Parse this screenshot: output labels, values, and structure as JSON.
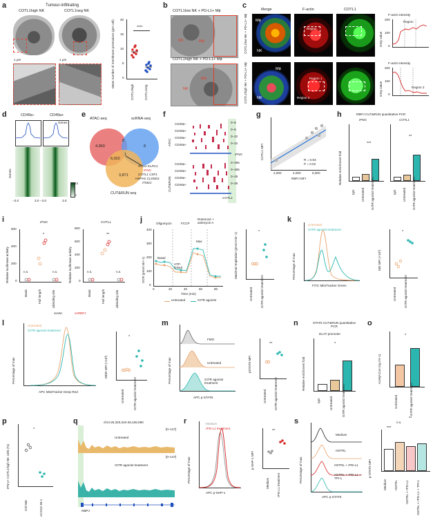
{
  "colors": {
    "red": "#d62728",
    "blue": "#1f4fbf",
    "orange": "#e8a36c",
    "teal": "#2bb6b0",
    "green": "#3d9a48",
    "dark": "#222222"
  },
  "panels": {
    "a": "a",
    "b": "b",
    "c": "c",
    "d": "d",
    "e": "e",
    "f": "f",
    "g": "g",
    "h": "h",
    "i": "i",
    "j": "j",
    "k": "k",
    "l": "l",
    "m": "m",
    "n": "n",
    "o": "o",
    "p": "p",
    "q": "q",
    "r": "r",
    "s": "s"
  },
  "a": {
    "title": "Tumour-infiltrating",
    "high": "COTL1high NK",
    "neg": "COTL1neg NK",
    "scale1": "1 μm",
    "scale2": "1 μm",
    "ylabel": "Mean number of membrane protrusions (per cell)",
    "sig": "****",
    "xticks": [
      "COTL1high",
      "COTL1neg"
    ],
    "yticks": [
      "0",
      "5",
      "10",
      "15",
      "20"
    ]
  },
  "b": {
    "t1": "COTL1low NK + PD-L1+ Mϕ",
    "t2": "COTL1high NK + PD-L1+ Mϕ",
    "nk": "NK",
    "mp": "Mϕ"
  },
  "c": {
    "cols": [
      "Merge",
      "F-actin",
      "COTL1"
    ],
    "row1": "COTL1low NK + PD-L1+ Mϕ",
    "row2": "COTL1high NK + PD-L1+ Mϕ",
    "mp": "Mϕ",
    "nk": "NK",
    "region": "Region",
    "region1": "Region 1",
    "region2": "Region 2",
    "plot_title": "F-actin intensity",
    "ylabel": "Grey value",
    "plot1_yticks": [
      "200",
      "100",
      "0"
    ],
    "plot2_yticks": [
      "200",
      "100",
      "0"
    ]
  },
  "d": {
    "c1": "CD49a−",
    "c2": "CD49a+",
    "ylabel": "Genes",
    "legend": "Genes",
    "ticks": [
      "−3.0",
      "3.0",
      "−3.0",
      "3.0"
    ],
    "cbar": [
      "14",
      "0"
    ]
  },
  "e": {
    "atac": "ATAC-seq",
    "scrna": "scRNA-seq",
    "cut": "CUT&RUN seq",
    "n1": "4,969",
    "n2": "5",
    "n3": "8",
    "n4": "6,022",
    "n5": "1",
    "n6": "3,871",
    "genes1": "RGS1 KLRC1",
    "genes2": "IFNG",
    "genes3": "COTL1 CSF1",
    "genes4": "HSPH1 CLDND1",
    "genes5": "ITM2C"
  },
  "f": {
    "atac": "ATAC",
    "cutrun": "CUT&RUN",
    "rows": [
      "CD49a−",
      "CD49a+",
      "CD49a−",
      "CD49a+"
    ],
    "rows2": [
      "CD49a−",
      "CD49a+",
      "CD49a−",
      "CD49a+"
    ],
    "ranges": [
      "0–8",
      "0–8",
      "0–22",
      "0–22"
    ],
    "ranges2": [
      "0–465",
      "0–465",
      "0–26",
      "0–26"
    ],
    "gene1": "IFNG",
    "gene2": "COTL1"
  },
  "g": {
    "xlabel": "RBPJ MFI",
    "ylabel": "COTL1 MFI",
    "r": "R = 0.83",
    "p": "P = 0.02",
    "xticks": [
      "2,000",
      "4,000",
      "6,000"
    ]
  },
  "h": {
    "title": "RBPJ CUT&RUN quantitative PCR",
    "ylabel": "Relative enrichment fold",
    "sub1": "IFNG",
    "sub2": "COTL1",
    "sig1": "***",
    "sig2": "**",
    "xticks": [
      "IgG",
      "Untreated",
      "GITR agonist treatment"
    ]
  },
  "i": {
    "sub1": "IFNG",
    "sub2": "COTL1",
    "ylabel": "Relative luciferase activity",
    "xticks": [
      "Basic",
      "Full length",
      "Δbinding site"
    ],
    "ns": "n.s.",
    "sig1": "*",
    "sig2": "**",
    "legend1": "ovVec",
    "legend2": "ovRBPJ",
    "yticks1": [
      "0",
      "200",
      "400",
      "600"
    ],
    "yticks2": [
      "0",
      "200",
      "400",
      "600",
      "800"
    ]
  },
  "j": {
    "labels": [
      "Oligomycin",
      "FCCP",
      "Rotenone + antimycin A"
    ],
    "basal": "Basal",
    "atp": "ATP-linked",
    "max": "Max",
    "ylabel": "OCR (pmol min−1)",
    "xlabel": "Time (min)",
    "legend1": "Untreated",
    "legend2": "GITR agonist",
    "ylabel2": "Maximal respiration (pmol min−1)",
    "sig": "*",
    "xticks2": [
      "Untreated",
      "GITR agonist treatment"
    ],
    "xticks": [
      "0",
      "20",
      "40",
      "60",
      "80"
    ],
    "yticks": [
      "0",
      "100",
      "200",
      "300",
      "400"
    ]
  },
  "k": {
    "legend1": "Untreated",
    "legend2": "GITR agonist treatment",
    "xlabel": "FITC MitoTracker Green",
    "ylabel": "Percentage of max",
    "ylabel2": "MG MFI (×10³)",
    "sig": "*",
    "xticks2": [
      "Untreated",
      "GITR agonist treatment"
    ]
  },
  "l": {
    "legend1": "Untreated",
    "legend2": "GITR agonist treatment",
    "xlabel": "APC MitoTracker Deep Red",
    "ylabel": "Percentage of max",
    "ylabel2": "MDR MFI (×10³)",
    "sig": "*",
    "xticks2": [
      "Untreated",
      "GITR agonist treatment"
    ]
  },
  "m": {
    "fmo": "FMO",
    "untreated": "Untreated",
    "gitr": "GITR agonist treatment",
    "xlabel": "APC p-STAT5",
    "ylabel": "Percentage of max",
    "ylabel2": "pSTAT5 MFI",
    "sig": "**",
    "xticks2": [
      "Untreated",
      "GITR agonist treatment"
    ]
  },
  "n": {
    "title": "STAT5 CUT&RUN quantitative PCR",
    "sub": "DLAT promoter",
    "ylabel": "Relative enrichment fold",
    "sig": "*",
    "xticks": [
      "IgG",
      "Untreated",
      "GITR agonist treatment"
    ]
  },
  "o": {
    "ylabel": "Acetyl-CoA (ng ml−1)",
    "sig": "*",
    "xticks": [
      "Untreated",
      "GITR agonist treatment"
    ]
  },
  "p": {
    "ylabel": "IFN-γ+ COTL1high NK cells (%)",
    "sig": "*",
    "xticks": [
      "Ctrl NM",
      "ACSS2-IN-1"
    ]
  },
  "q": {
    "locus": "chr4:26,320,343-26,436,080",
    "range1": "[0–147]",
    "range2": "[0–147]",
    "untreated": "Untreated",
    "gitr": "GITR agonist treatment",
    "gene": "RBPJ"
  },
  "r": {
    "legend1": "Medium",
    "legend2": "rPD-L1 treatment",
    "xlabel": "APC p-SHP-1",
    "ylabel": "Percentage of max",
    "ylabel2": "p-SHP-1 MFI",
    "sig": "**",
    "xticks2": [
      "Medium",
      "rPD-L1 treatment"
    ]
  },
  "s": {
    "labels": [
      "Medium",
      "rGITRL",
      "rGITRL + rPD-L1",
      "rGITRL + rPD-L1 + TPI-1"
    ],
    "xlabel": "APC p-STAT5",
    "ylabel": "Percentage of max",
    "ylabel2": "p-STAT5 MFI",
    "ns": "n.s.",
    "sig1": "***",
    "sig2": "**",
    "xticks2": [
      "Medium",
      "rGITRL",
      "rGITRL + rPD-L1",
      "rGITRL + rPD-L1 + TPI-1"
    ]
  }
}
